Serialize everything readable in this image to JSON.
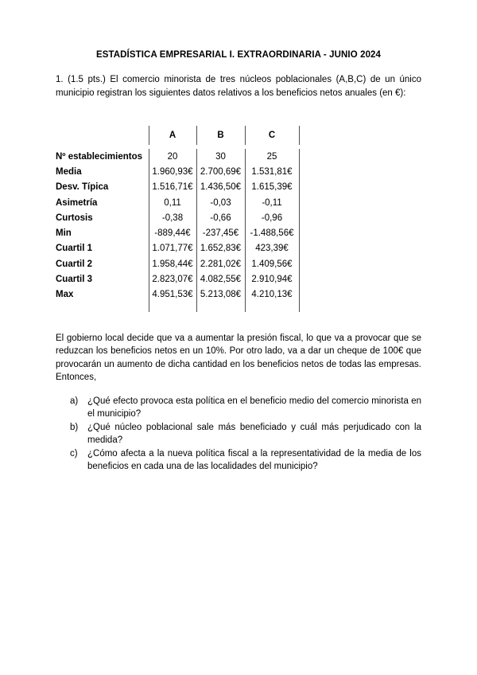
{
  "doc": {
    "title": "ESTADÍSTICA EMPRESARIAL I. EXTRAORDINARIA - JUNIO 2024",
    "intro": "1. (1.5 pts.) El comercio minorista de tres núcleos poblacionales (A,B,C) de un único municipio registran los siguientes datos relativos a los beneficios netos anuales (en €):",
    "table": {
      "columns": [
        "A",
        "B",
        "C"
      ],
      "rows": [
        {
          "label": "Nº establecimientos",
          "values": [
            "20",
            "30",
            "25"
          ]
        },
        {
          "label": "Media",
          "values": [
            "1.960,93€",
            "2.700,69€",
            "1.531,81€"
          ]
        },
        {
          "label": "Desv. Típica",
          "values": [
            "1.516,71€",
            "1.436,50€",
            "1.615,39€"
          ]
        },
        {
          "label": "Asimetría",
          "values": [
            "0,11",
            "-0,03",
            "-0,11"
          ]
        },
        {
          "label": "Curtosis",
          "values": [
            "-0,38",
            "-0,66",
            "-0,96"
          ]
        },
        {
          "label": "Min",
          "values": [
            "-889,44€",
            "-237,45€",
            "-1.488,56€"
          ]
        },
        {
          "label": "Cuartil 1",
          "values": [
            "1.071,77€",
            "1.652,83€",
            "423,39€"
          ]
        },
        {
          "label": "Cuartil 2",
          "values": [
            "1.958,44€",
            "2.281,02€",
            "1.409,56€"
          ]
        },
        {
          "label": "Cuartil 3",
          "values": [
            "2.823,07€",
            "4.082,55€",
            "2.910,94€"
          ]
        },
        {
          "label": "Max",
          "values": [
            "4.951,53€",
            "5.213,08€",
            "4.210,13€"
          ]
        }
      ]
    },
    "policy": "El gobierno local decide que va a aumentar la presión fiscal, lo que va a provocar que se reduzcan los beneficios netos en un 10%. Por otro lado, va a dar un cheque de 100€ que provocarán un aumento de dicha cantidad en los beneficios netos de todas las empresas. Entonces,",
    "questions": [
      {
        "marker": "a)",
        "text": "¿Qué efecto provoca esta política en el beneficio medio del comercio minorista en el municipio?"
      },
      {
        "marker": "b)",
        "text": "¿Qué núcleo poblacional sale más beneficiado y cuál más perjudicado con la medida?"
      },
      {
        "marker": "c)",
        "text": "¿Cómo afecta a la nueva política fiscal a la representatividad de la media de los beneficios en cada una de las localidades del municipio?"
      }
    ]
  }
}
